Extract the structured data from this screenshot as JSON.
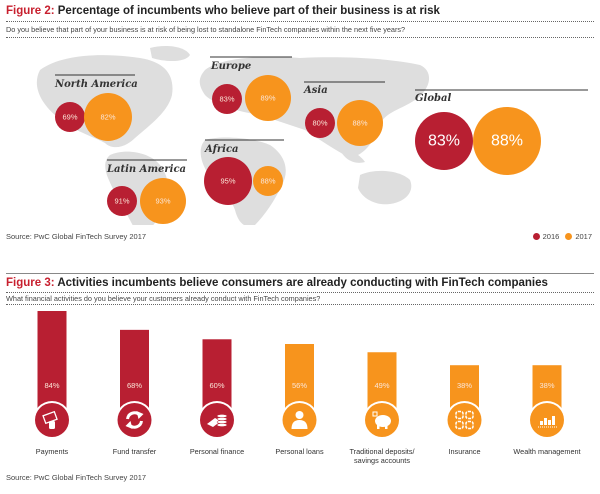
{
  "figure2": {
    "title_num": "Figure 2:",
    "title_text": " Percentage of incumbents who believe part of their business is at risk",
    "subtitle": "Do you believe that part of your business is at risk of being lost to standalone FinTech companies within the next five years?",
    "source": "Source: PwC Global FinTech Survey 2017",
    "legend": [
      {
        "label": "2016",
        "color": "#b81f32"
      },
      {
        "label": "2017",
        "color": "#f7941d"
      }
    ]
  },
  "figure3": {
    "title_num": "Figure 3:",
    "title_text": " Activities incumbents believe consumers are already conducting with FinTech companies",
    "subtitle": "What financial activities do you believe your customers already conduct with FinTech companies?",
    "source": "Source: PwC Global FinTech Survey 2017"
  },
  "colors": {
    "red": "#b81f32",
    "orange": "#f7941d",
    "title_accent": "#c8202f",
    "map": "#d9d9d9"
  },
  "chart_data": [
    {
      "type": "bubble-map",
      "title": "Percentage of incumbents who believe part of their business is at risk",
      "series_names": [
        "2016",
        "2017"
      ],
      "regions": [
        {
          "name": "North America",
          "v2016": 69,
          "v2017": 82,
          "label2016": "69%",
          "label2017": "82%"
        },
        {
          "name": "Europe",
          "v2016": 83,
          "v2017": 89,
          "label2016": "83%",
          "label2017": "89%"
        },
        {
          "name": "Asia",
          "v2016": 80,
          "v2017": 88,
          "label2016": "80%",
          "label2017": "88%"
        },
        {
          "name": "Global",
          "v2016": 83,
          "v2017": 88,
          "label2016": "83%",
          "label2017": "88%"
        },
        {
          "name": "Africa",
          "v2016": 95,
          "v2017": 88,
          "label2016": "95%",
          "label2017": "88%"
        },
        {
          "name": "Latin America",
          "v2016": 91,
          "v2017": 93,
          "label2016": "91%",
          "label2017": "93%"
        }
      ]
    },
    {
      "type": "bar",
      "title": "Activities incumbents believe consumers are already conducting with FinTech companies",
      "categories": [
        "Payments",
        "Fund transfer",
        "Personal finance",
        "Personal loans",
        "Traditional deposits/ savings accounts",
        "Insurance",
        "Wealth management"
      ],
      "label_lines": [
        [
          "Payments"
        ],
        [
          "Fund transfer"
        ],
        [
          "Personal finance"
        ],
        [
          "Personal loans"
        ],
        [
          "Traditional deposits/",
          "savings accounts"
        ],
        [
          "Insurance"
        ],
        [
          "Wealth management"
        ]
      ],
      "values": [
        84,
        68,
        60,
        56,
        49,
        38,
        38
      ],
      "value_labels": [
        "84%",
        "68%",
        "60%",
        "56%",
        "49%",
        "38%",
        "38%"
      ],
      "colors": [
        "red",
        "red",
        "red",
        "orange",
        "orange",
        "orange",
        "orange"
      ],
      "icons": [
        "card-payment-icon",
        "fund-transfer-icon",
        "cash-stack-icon",
        "person-icon",
        "piggy-bank-icon",
        "insurance-icon",
        "bar-chart-icon"
      ],
      "ylim": [
        0,
        100
      ]
    }
  ]
}
